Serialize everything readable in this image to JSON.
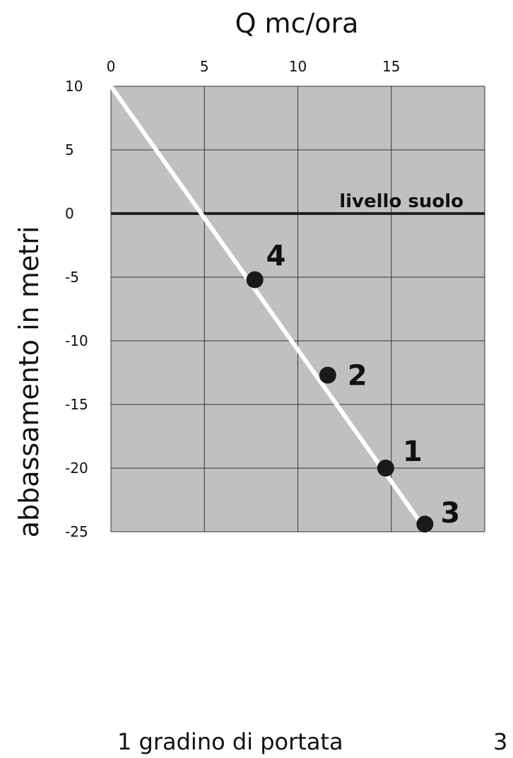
{
  "chart_data": {
    "type": "scatter",
    "title": "Q mc/ora",
    "xlabel": "Q mc/ora",
    "ylabel": "abbassamento in metri",
    "x_axis_position": "top",
    "xlim": [
      0,
      20
    ],
    "ylim": [
      -25,
      10
    ],
    "x_ticks": [
      0,
      5,
      10,
      15
    ],
    "x_tick_labels": [
      "0",
      "5",
      "10",
      "15"
    ],
    "y_ticks": [
      10,
      5,
      0,
      -5,
      -10,
      -15,
      -20,
      -25
    ],
    "y_tick_labels": [
      "10",
      "5",
      "0",
      "-5",
      "-10",
      "-15",
      "-20",
      "-25"
    ],
    "grid": true,
    "background_color": "#c0c0c0",
    "points": [
      {
        "label": "4",
        "x": 7.7,
        "y": -5.2
      },
      {
        "label": "2",
        "x": 11.6,
        "y": -12.7
      },
      {
        "label": "1",
        "x": 14.7,
        "y": -20.0
      },
      {
        "label": "3",
        "x": 16.8,
        "y": -24.4
      }
    ],
    "trend_line": {
      "x": [
        0,
        17.0
      ],
      "y": [
        10,
        -25.2
      ],
      "color": "#ffffff"
    },
    "reference_line": {
      "y": 0,
      "label": "livello suolo",
      "color": "#222222"
    }
  },
  "footer": {
    "caption": "1 gradino di portata",
    "page_number": "3"
  }
}
